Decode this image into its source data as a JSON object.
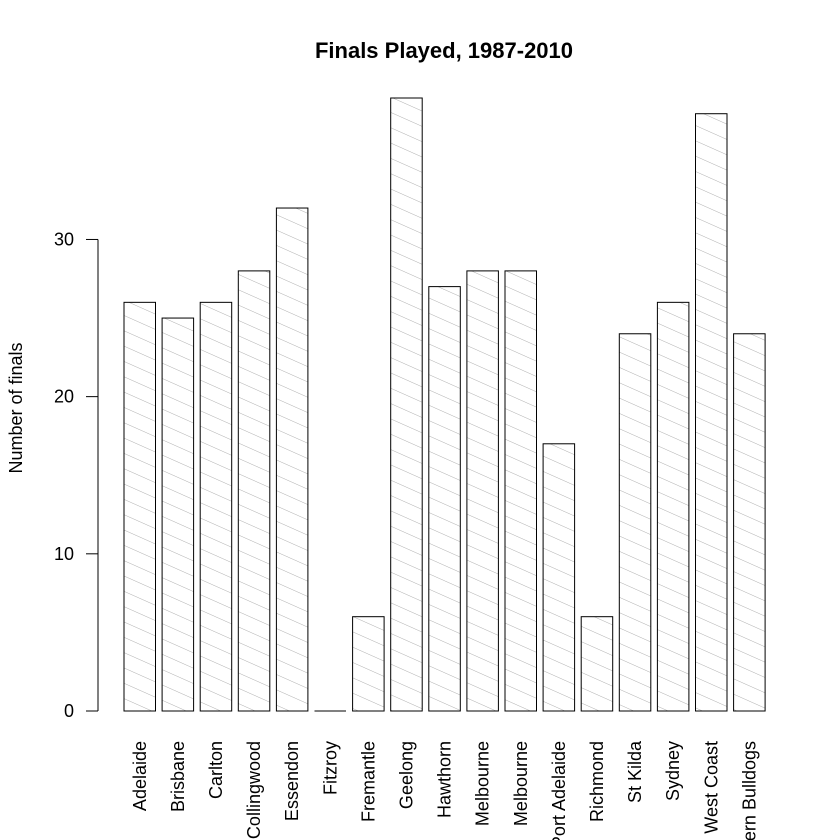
{
  "chart_data": {
    "type": "bar",
    "title": "Finals Played, 1987-2010",
    "xlabel": "",
    "ylabel": "Number of finals",
    "ylim": [
      0,
      39
    ],
    "yticks": [
      0,
      10,
      20,
      30
    ],
    "grid": false,
    "legend": "none",
    "bar_fill": "#ffffff",
    "bar_stroke": "#000000",
    "hatch_color": "#b0b0b0",
    "categories": [
      "Adelaide",
      "Brisbane",
      "Carlton",
      "Collingwood",
      "Essendon",
      "Fitzroy",
      "Fremantle",
      "Geelong",
      "Hawthorn",
      "Melbourne",
      "Melbourne",
      "Port Adelaide",
      "Richmond",
      "St Kilda",
      "Sydney",
      "West Coast",
      "Western Bulldogs"
    ],
    "values": [
      26,
      25,
      26,
      28,
      32,
      0,
      6,
      39,
      27,
      28,
      28,
      17,
      6,
      24,
      26,
      38,
      24
    ]
  }
}
